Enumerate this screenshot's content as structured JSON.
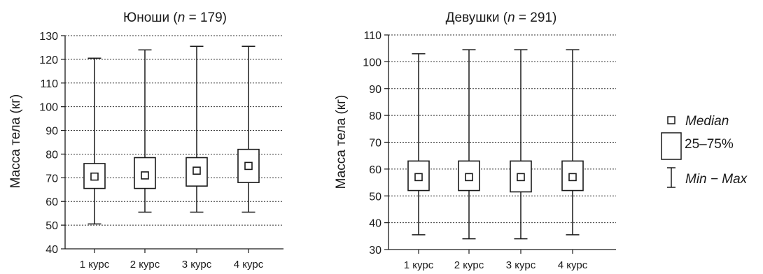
{
  "chart_data": [
    {
      "type": "boxplot",
      "title": {
        "prefix": "Юноши (",
        "n_symbol": "n",
        "rest": " = 179)"
      },
      "ylabel": "Масса тела (кг)",
      "ylim": [
        40,
        130
      ],
      "yticks": [
        40,
        50,
        60,
        70,
        80,
        90,
        100,
        110,
        120,
        130
      ],
      "grid": true,
      "categories": [
        "1 курс",
        "2 курс",
        "3 курс",
        "4 курс"
      ],
      "boxes": [
        {
          "min": 50.5,
          "q1": 65.5,
          "median": 70.5,
          "q3": 76,
          "max": 120.5
        },
        {
          "min": 55.5,
          "q1": 65.5,
          "median": 71,
          "q3": 78.5,
          "max": 124
        },
        {
          "min": 55.5,
          "q1": 66.5,
          "median": 73,
          "q3": 78.5,
          "max": 125.5
        },
        {
          "min": 55.5,
          "q1": 68,
          "median": 75,
          "q3": 82,
          "max": 125.5
        }
      ]
    },
    {
      "type": "boxplot",
      "title": {
        "prefix": "Девушки (",
        "n_symbol": "n",
        "rest": " = 291)"
      },
      "ylabel": "Масса тела (кг)",
      "ylim": [
        30,
        110
      ],
      "yticks": [
        30,
        40,
        50,
        60,
        70,
        80,
        90,
        100,
        110
      ],
      "grid": true,
      "categories": [
        "1 курс",
        "2 курс",
        "3 курс",
        "4 курс"
      ],
      "boxes": [
        {
          "min": 35.5,
          "q1": 52,
          "median": 57,
          "q3": 63,
          "max": 103
        },
        {
          "min": 34,
          "q1": 52,
          "median": 57,
          "q3": 63,
          "max": 104.5
        },
        {
          "min": 34,
          "q1": 51.5,
          "median": 57,
          "q3": 63,
          "max": 104.5
        },
        {
          "min": 35.5,
          "q1": 52,
          "median": 57,
          "q3": 63,
          "max": 104.5
        }
      ]
    }
  ],
  "legend": {
    "placement": "right",
    "items": [
      {
        "symbol": "median-square",
        "label": "Median"
      },
      {
        "symbol": "box",
        "label": "25–75%"
      },
      {
        "symbol": "whisker",
        "label": "Min − Max"
      }
    ]
  }
}
